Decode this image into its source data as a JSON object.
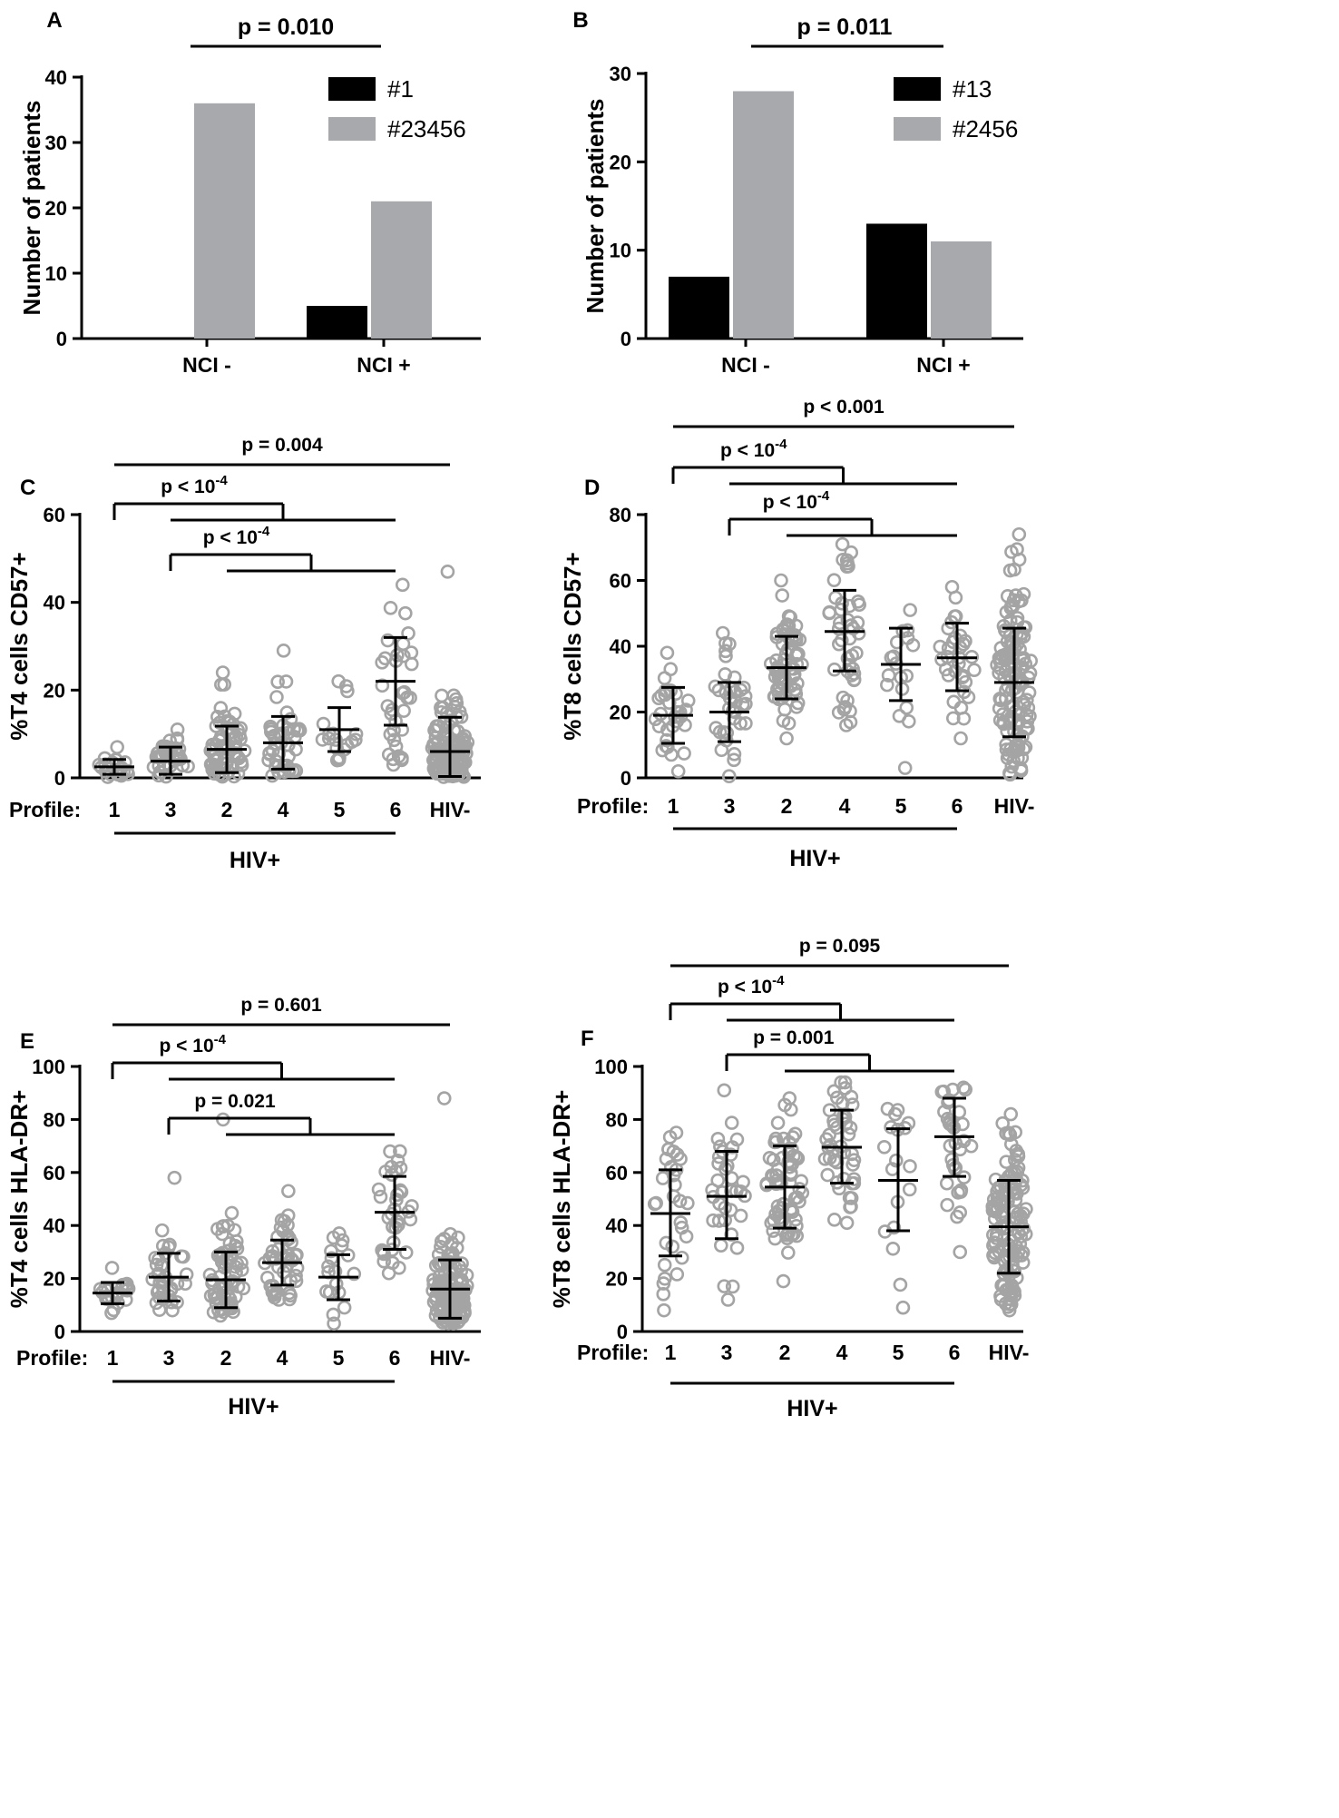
{
  "colors": {
    "black": "#000000",
    "gray": "#a8a9ad",
    "dot": "#a4a4a4"
  },
  "panels": {
    "A": {
      "letter": "A",
      "ylabel": "Number of patients",
      "ylim": [
        0,
        40
      ],
      "yticks": [
        0,
        10,
        20,
        30,
        40
      ],
      "categories": [
        "NCI -",
        "NCI +"
      ],
      "series": [
        {
          "name": "#1",
          "color": "#000000",
          "values": [
            0,
            5
          ]
        },
        {
          "name": "#23456",
          "color": "#a8a9ad",
          "values": [
            36,
            21
          ]
        }
      ],
      "pvalue": "p = 0.010"
    },
    "B": {
      "letter": "B",
      "ylabel": "Number of patients",
      "ylim": [
        0,
        30
      ],
      "yticks": [
        0,
        10,
        20,
        30
      ],
      "categories": [
        "NCI -",
        "NCI +"
      ],
      "series": [
        {
          "name": "#13",
          "color": "#000000",
          "values": [
            7,
            13
          ]
        },
        {
          "name": "#2456",
          "color": "#a8a9ad",
          "values": [
            28,
            11
          ]
        }
      ],
      "pvalue": "p = 0.011"
    },
    "C": {
      "letter": "C",
      "ylabel": "%T4 cells CD57+",
      "ylim": [
        0,
        60
      ],
      "yticks": [
        0,
        20,
        40,
        60
      ],
      "profile_label": "Profile:",
      "categories": [
        "1",
        "3",
        "2",
        "4",
        "5",
        "6",
        "HIV-"
      ],
      "group_label": "HIV+",
      "groups": [
        {
          "mean": 2.5,
          "sd_low": 0.8,
          "sd_high": 4.2,
          "n": 22,
          "min": 0.2,
          "max": 7
        },
        {
          "mean": 3.8,
          "sd_low": 0.8,
          "sd_high": 7.0,
          "n": 35,
          "min": 0.3,
          "max": 11
        },
        {
          "mean": 6.5,
          "sd_low": 1.2,
          "sd_high": 11.8,
          "n": 65,
          "min": 0.3,
          "max": 24
        },
        {
          "mean": 8.0,
          "sd_low": 2.0,
          "sd_high": 14.0,
          "n": 45,
          "min": 0.5,
          "max": 29
        },
        {
          "mean": 11.0,
          "sd_low": 6.0,
          "sd_high": 16.0,
          "n": 18,
          "min": 4,
          "max": 22
        },
        {
          "mean": 22.0,
          "sd_low": 12.0,
          "sd_high": 32.0,
          "n": 34,
          "min": 3,
          "max": 44
        },
        {
          "mean": 6.0,
          "sd_low": 0.3,
          "sd_high": 13.8,
          "n": 130,
          "min": 0.2,
          "max": 47
        }
      ],
      "brackets": [
        {
          "label": "p = 0.004",
          "type": "line",
          "from": 0,
          "to": 6,
          "level": 0
        },
        {
          "label": "p < 10",
          "exp": "-4",
          "type": "group",
          "left": [
            0
          ],
          "right": [
            1,
            5
          ],
          "level": 1
        },
        {
          "label": "p < 10",
          "exp": "-4",
          "type": "group",
          "left": [
            1
          ],
          "right": [
            2,
            5
          ],
          "level": 2
        }
      ]
    },
    "D": {
      "letter": "D",
      "ylabel": "%T8 cells CD57+",
      "ylim": [
        0,
        80
      ],
      "yticks": [
        0,
        20,
        40,
        60,
        80
      ],
      "profile_label": "Profile:",
      "categories": [
        "1",
        "3",
        "2",
        "4",
        "5",
        "6",
        "HIV-"
      ],
      "group_label": "HIV+",
      "groups": [
        {
          "mean": 19.0,
          "sd_low": 10.5,
          "sd_high": 27.5,
          "n": 30,
          "min": 2,
          "max": 38
        },
        {
          "mean": 20.0,
          "sd_low": 11.0,
          "sd_high": 29.0,
          "n": 35,
          "min": 0.5,
          "max": 44
        },
        {
          "mean": 33.5,
          "sd_low": 24.0,
          "sd_high": 43.0,
          "n": 65,
          "min": 12,
          "max": 60
        },
        {
          "mean": 44.5,
          "sd_low": 32.5,
          "sd_high": 57.0,
          "n": 45,
          "min": 16,
          "max": 71
        },
        {
          "mean": 34.5,
          "sd_low": 23.5,
          "sd_high": 45.5,
          "n": 18,
          "min": 3,
          "max": 51
        },
        {
          "mean": 36.5,
          "sd_low": 26.5,
          "sd_high": 47.0,
          "n": 34,
          "min": 12,
          "max": 58
        },
        {
          "mean": 29.0,
          "sd_low": 12.5,
          "sd_high": 45.5,
          "n": 130,
          "min": 1,
          "max": 74
        }
      ],
      "brackets": [
        {
          "label": "p < 0.001",
          "type": "line",
          "from": 0,
          "to": 6,
          "level": 0
        },
        {
          "label": "p < 10",
          "exp": "-4",
          "type": "group",
          "left": [
            0
          ],
          "right": [
            1,
            5
          ],
          "level": 1
        },
        {
          "label": "p < 10",
          "exp": "-4",
          "type": "group",
          "left": [
            1
          ],
          "right": [
            2,
            5
          ],
          "level": 2
        }
      ]
    },
    "E": {
      "letter": "E",
      "ylabel": "%T4 cells HLA-DR+",
      "ylim": [
        0,
        100
      ],
      "yticks": [
        0,
        20,
        40,
        60,
        80,
        100
      ],
      "profile_label": "Profile:",
      "categories": [
        "1",
        "3",
        "2",
        "4",
        "5",
        "6",
        "HIV-"
      ],
      "group_label": "HIV+",
      "groups": [
        {
          "mean": 14.5,
          "sd_low": 10.5,
          "sd_high": 18.5,
          "n": 22,
          "min": 7,
          "max": 24
        },
        {
          "mean": 20.5,
          "sd_low": 11.5,
          "sd_high": 29.5,
          "n": 35,
          "min": 8,
          "max": 58
        },
        {
          "mean": 19.5,
          "sd_low": 9.0,
          "sd_high": 30.0,
          "n": 65,
          "min": 6,
          "max": 80
        },
        {
          "mean": 26.0,
          "sd_low": 17.5,
          "sd_high": 34.5,
          "n": 45,
          "min": 12,
          "max": 53
        },
        {
          "mean": 20.5,
          "sd_low": 12.0,
          "sd_high": 29.0,
          "n": 18,
          "min": 3,
          "max": 37
        },
        {
          "mean": 45.0,
          "sd_low": 31.0,
          "sd_high": 58.5,
          "n": 34,
          "min": 22,
          "max": 68
        },
        {
          "mean": 16.0,
          "sd_low": 5.0,
          "sd_high": 27.0,
          "n": 130,
          "min": 3,
          "max": 88
        }
      ],
      "brackets": [
        {
          "label": "p = 0.601",
          "type": "line",
          "from": 0,
          "to": 6,
          "level": 0
        },
        {
          "label": "p < 10",
          "exp": "-4",
          "type": "group",
          "left": [
            0
          ],
          "right": [
            1,
            5
          ],
          "level": 1
        },
        {
          "label": "p = 0.021",
          "type": "group",
          "left": [
            1
          ],
          "right": [
            2,
            5
          ],
          "level": 2
        }
      ]
    },
    "F": {
      "letter": "F",
      "ylabel": "%T8 cells HLA-DR+",
      "ylim": [
        0,
        100
      ],
      "yticks": [
        0,
        20,
        40,
        60,
        80,
        100
      ],
      "profile_label": "Profile:",
      "categories": [
        "1",
        "3",
        "2",
        "4",
        "5",
        "6",
        "HIV-"
      ],
      "group_label": "HIV+",
      "groups": [
        {
          "mean": 44.5,
          "sd_low": 28.5,
          "sd_high": 61.0,
          "n": 30,
          "min": 8,
          "max": 75
        },
        {
          "mean": 51.0,
          "sd_low": 35.0,
          "sd_high": 68.0,
          "n": 35,
          "min": 12,
          "max": 91
        },
        {
          "mean": 54.5,
          "sd_low": 39.0,
          "sd_high": 70.0,
          "n": 65,
          "min": 19,
          "max": 88
        },
        {
          "mean": 69.5,
          "sd_low": 56.0,
          "sd_high": 83.5,
          "n": 45,
          "min": 41,
          "max": 94
        },
        {
          "mean": 57.0,
          "sd_low": 38.0,
          "sd_high": 76.5,
          "n": 18,
          "min": 9,
          "max": 84
        },
        {
          "mean": 73.5,
          "sd_low": 58.5,
          "sd_high": 88.0,
          "n": 34,
          "min": 30,
          "max": 92
        },
        {
          "mean": 39.5,
          "sd_low": 22.0,
          "sd_high": 57.0,
          "n": 130,
          "min": 8,
          "max": 82
        }
      ],
      "brackets": [
        {
          "label": "p = 0.095",
          "type": "line",
          "from": 0,
          "to": 6,
          "level": 0
        },
        {
          "label": "p < 10",
          "exp": "-4",
          "type": "group",
          "left": [
            0
          ],
          "right": [
            1,
            5
          ],
          "level": 1
        },
        {
          "label": "p = 0.001",
          "type": "group",
          "left": [
            1
          ],
          "right": [
            2,
            5
          ],
          "level": 2
        }
      ]
    }
  },
  "chart_data": [
    {
      "type": "bar",
      "panel": "A",
      "categories": [
        "NCI -",
        "NCI +"
      ],
      "series": [
        {
          "name": "#1",
          "values": [
            0,
            5
          ]
        },
        {
          "name": "#23456",
          "values": [
            36,
            21
          ]
        }
      ],
      "ylabel": "Number of patients",
      "ylim": [
        0,
        40
      ],
      "annotation": "p = 0.010"
    },
    {
      "type": "bar",
      "panel": "B",
      "categories": [
        "NCI -",
        "NCI +"
      ],
      "series": [
        {
          "name": "#13",
          "values": [
            7,
            13
          ]
        },
        {
          "name": "#2456",
          "values": [
            28,
            11
          ]
        }
      ],
      "ylabel": "Number of patients",
      "ylim": [
        0,
        30
      ],
      "annotation": "p = 0.011"
    },
    {
      "type": "scatter",
      "panel": "C",
      "ylabel": "%T4 cells CD57+",
      "ylim": [
        0,
        60
      ],
      "categories": [
        "1",
        "3",
        "2",
        "4",
        "5",
        "6",
        "HIV-"
      ],
      "mean": [
        2.5,
        3.8,
        6.5,
        8.0,
        11.0,
        22.0,
        6.0
      ],
      "sd_range": [
        [
          0.8,
          4.2
        ],
        [
          0.8,
          7.0
        ],
        [
          1.2,
          11.8
        ],
        [
          2.0,
          14.0
        ],
        [
          6.0,
          16.0
        ],
        [
          12.0,
          32.0
        ],
        [
          0.3,
          13.8
        ]
      ]
    },
    {
      "type": "scatter",
      "panel": "D",
      "ylabel": "%T8 cells CD57+",
      "ylim": [
        0,
        80
      ],
      "categories": [
        "1",
        "3",
        "2",
        "4",
        "5",
        "6",
        "HIV-"
      ],
      "mean": [
        19.0,
        20.0,
        33.5,
        44.5,
        34.5,
        36.5,
        29.0
      ],
      "sd_range": [
        [
          10.5,
          27.5
        ],
        [
          11.0,
          29.0
        ],
        [
          24.0,
          43.0
        ],
        [
          32.5,
          57.0
        ],
        [
          23.5,
          45.5
        ],
        [
          26.5,
          47.0
        ],
        [
          12.5,
          45.5
        ]
      ]
    },
    {
      "type": "scatter",
      "panel": "E",
      "ylabel": "%T4 cells HLA-DR+",
      "ylim": [
        0,
        100
      ],
      "categories": [
        "1",
        "3",
        "2",
        "4",
        "5",
        "6",
        "HIV-"
      ],
      "mean": [
        14.5,
        20.5,
        19.5,
        26.0,
        20.5,
        45.0,
        16.0
      ],
      "sd_range": [
        [
          10.5,
          18.5
        ],
        [
          11.5,
          29.5
        ],
        [
          9.0,
          30.0
        ],
        [
          17.5,
          34.5
        ],
        [
          12.0,
          29.0
        ],
        [
          31.0,
          58.5
        ],
        [
          5.0,
          27.0
        ]
      ]
    },
    {
      "type": "scatter",
      "panel": "F",
      "ylabel": "%T8 cells HLA-DR+",
      "ylim": [
        0,
        100
      ],
      "categories": [
        "1",
        "3",
        "2",
        "4",
        "5",
        "6",
        "HIV-"
      ],
      "mean": [
        44.5,
        51.0,
        54.5,
        69.5,
        57.0,
        73.5,
        39.5
      ],
      "sd_range": [
        [
          28.5,
          61.0
        ],
        [
          35.0,
          68.0
        ],
        [
          39.0,
          70.0
        ],
        [
          56.0,
          83.5
        ],
        [
          38.0,
          76.5
        ],
        [
          58.5,
          88.0
        ],
        [
          22.0,
          57.0
        ]
      ]
    }
  ]
}
